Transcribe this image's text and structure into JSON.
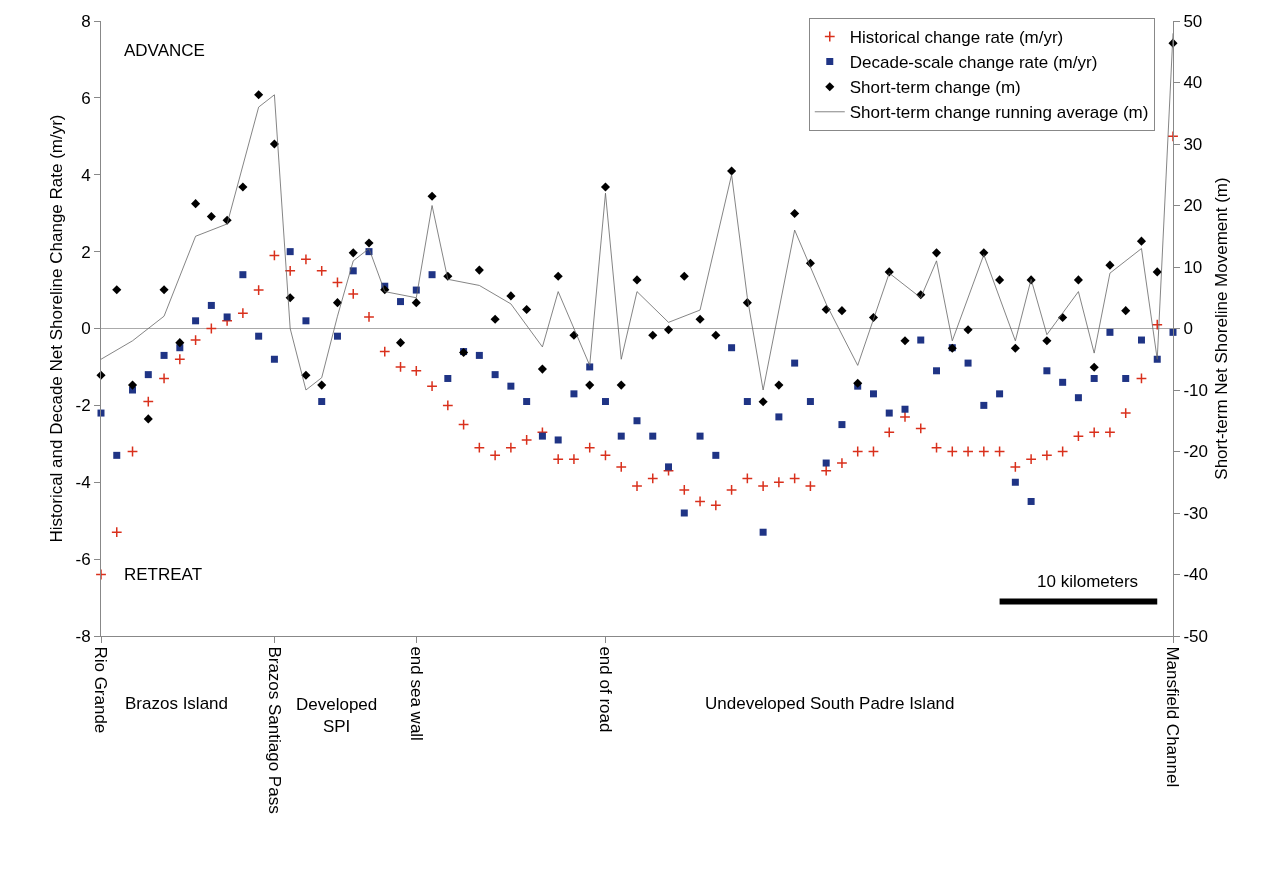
{
  "chart_data": {
    "type": "scatter",
    "ylabel": "Historical and Decade Net Shoreline Change Rate (m/yr)",
    "y2label": "Short-term Net Shoreline Movement (m)",
    "categories": [
      "Rio Grande",
      null,
      null,
      null,
      null,
      null,
      null,
      null,
      null,
      null,
      null,
      "Brazos Santiago Pass",
      null,
      null,
      null,
      null,
      null,
      null,
      null,
      null,
      "end sea wall",
      null,
      null,
      null,
      null,
      null,
      null,
      null,
      null,
      null,
      null,
      null,
      "end of road",
      null,
      null,
      null,
      null,
      null,
      null,
      null,
      null,
      null,
      null,
      null,
      null,
      null,
      null,
      null,
      null,
      null,
      null,
      null,
      null,
      null,
      null,
      null,
      null,
      null,
      null,
      null,
      null,
      null,
      null,
      null,
      null,
      null,
      null,
      null,
      "Mansfield Channel"
    ],
    "ylim": [
      -8,
      8
    ],
    "yticks": [
      -8,
      -6,
      -4,
      -2,
      0,
      2,
      4,
      6,
      8
    ],
    "y2lim": [
      -50,
      50
    ],
    "y2ticks": [
      -50,
      -40,
      -30,
      -20,
      -10,
      0,
      10,
      20,
      30,
      40,
      50
    ],
    "grid": false,
    "legend": "top right",
    "ref_lines": [
      {
        "axis": "y",
        "value": 0,
        "color": "#aaaaaa"
      }
    ],
    "annotations": [
      "ADVANCE",
      "RETREAT",
      "Brazos Island",
      "Developed\nSPI",
      "Undeveloped South Padre Island",
      "10 kilometers"
    ],
    "series": [
      {
        "name": "Historical change rate (m/yr)",
        "color": "#d9301c",
        "marker": "cross",
        "values": [
          -6.4,
          -5.3,
          -3.2,
          -1.9,
          -1.3,
          -0.8,
          -0.3,
          0.0,
          0.2,
          0.4,
          1.0,
          1.9,
          1.5,
          1.8,
          1.5,
          1.2,
          0.9,
          0.3,
          -0.6,
          -1.0,
          -1.1,
          -1.5,
          -2.0,
          -2.5,
          -3.1,
          -3.3,
          -3.1,
          -2.9,
          -2.7,
          -3.4,
          -3.4,
          -3.1,
          -3.3,
          -3.6,
          -4.1,
          -3.9,
          -3.7,
          -4.2,
          -4.5,
          -4.6,
          -4.2,
          -3.9,
          -4.1,
          -4.0,
          -3.9,
          -4.1,
          -3.7,
          -3.5,
          -3.2,
          -3.2,
          -2.7,
          -2.3,
          -2.6,
          -3.1,
          -3.2,
          -3.2,
          -3.2,
          -3.2,
          -3.6,
          -3.4,
          -3.3,
          -3.2,
          -2.8,
          -2.7,
          -2.7,
          -2.2,
          -1.3,
          0.1,
          5.0
        ]
      },
      {
        "name": "Decade-scale change rate (m/yr)",
        "color": "#1f3485",
        "marker": "square",
        "values": [
          -2.2,
          -3.3,
          -1.6,
          -1.2,
          -0.7,
          -0.5,
          0.2,
          0.6,
          0.3,
          1.4,
          -0.2,
          -0.8,
          2.0,
          0.2,
          -1.9,
          -0.2,
          1.5,
          2.0,
          1.1,
          0.7,
          1.0,
          1.4,
          -1.3,
          -0.6,
          -0.7,
          -1.2,
          -1.5,
          -1.9,
          -2.8,
          -2.9,
          -1.7,
          -1.0,
          -1.9,
          -2.8,
          -2.4,
          -2.8,
          -3.6,
          -4.8,
          -2.8,
          -3.3,
          -0.5,
          -1.9,
          -5.3,
          -2.3,
          -0.9,
          -1.9,
          -3.5,
          -2.5,
          -1.5,
          -1.7,
          -2.2,
          -2.1,
          -0.3,
          -1.1,
          -0.5,
          -0.9,
          -2.0,
          -1.7,
          -4.0,
          -4.5,
          -1.1,
          -1.4,
          -1.8,
          -1.3,
          -0.1,
          -1.3,
          -0.3,
          -0.8,
          -0.1
        ]
      },
      {
        "name": "Short-term change (m)",
        "color": "#000000",
        "marker": "diamond",
        "axis": "y2",
        "values": [
          -7.6,
          6.3,
          -9.2,
          -14.7,
          6.3,
          -2.3,
          20.3,
          18.2,
          17.6,
          23.0,
          38,
          30,
          5,
          -7.6,
          -9.2,
          4.2,
          12.3,
          13.9,
          6.3,
          -2.3,
          4.2,
          21.5,
          8.5,
          -3.9,
          9.5,
          1.5,
          5.3,
          3.1,
          -6.6,
          8.5,
          -1.1,
          -9.2,
          23.0,
          -9.2,
          7.9,
          -1.1,
          -0.2,
          8.5,
          1.5,
          -1.1,
          25.6,
          4.2,
          -11.9,
          -9.2,
          18.7,
          10.6,
          3.1,
          2.9,
          -8.9,
          1.8,
          9.2,
          -2.0,
          5.5,
          12.3,
          -3.2,
          -0.2,
          12.3,
          7.9,
          -3.2,
          7.9,
          -2.0,
          1.8,
          7.9,
          -6.3,
          10.3,
          2.9,
          14.2,
          9.2,
          46.4
        ]
      },
      {
        "name": "Short-term change running average (m)",
        "color": "#666666",
        "marker": "none",
        "type": "line",
        "axis": "y2",
        "values": [
          -5,
          null,
          -2,
          null,
          2,
          null,
          15,
          null,
          17,
          null,
          36,
          38,
          0,
          -10,
          -8,
          2,
          11,
          13,
          6,
          null,
          5,
          20,
          8,
          null,
          7,
          null,
          4,
          null,
          -3,
          6,
          0,
          -6,
          22,
          -5,
          6,
          null,
          1,
          null,
          3,
          null,
          25,
          5,
          -10,
          null,
          16,
          null,
          4,
          null,
          -6,
          null,
          9,
          null,
          5,
          11,
          -2,
          null,
          12,
          null,
          -2,
          8,
          -1,
          null,
          6,
          -4,
          9,
          null,
          13,
          -5,
          48
        ]
      },
      {
        "color": "#000000",
        "type": "line",
        "marker": "none",
        "values": [
          null,
          null,
          null,
          null,
          null,
          null,
          null,
          null,
          null,
          null,
          null,
          null,
          null,
          null,
          null,
          null,
          null,
          null,
          null,
          null,
          null,
          null,
          null,
          null,
          null,
          null,
          null,
          null,
          null,
          null,
          null,
          null,
          null,
          null,
          null,
          null,
          null,
          null,
          null,
          null,
          null,
          null,
          null,
          null,
          null,
          null,
          null,
          null,
          null,
          null,
          null,
          null,
          null,
          null,
          null,
          null,
          null,
          -7.1,
          null,
          null,
          null,
          null,
          null,
          null,
          null,
          null,
          null,
          -7.1,
          null
        ]
      }
    ]
  }
}
